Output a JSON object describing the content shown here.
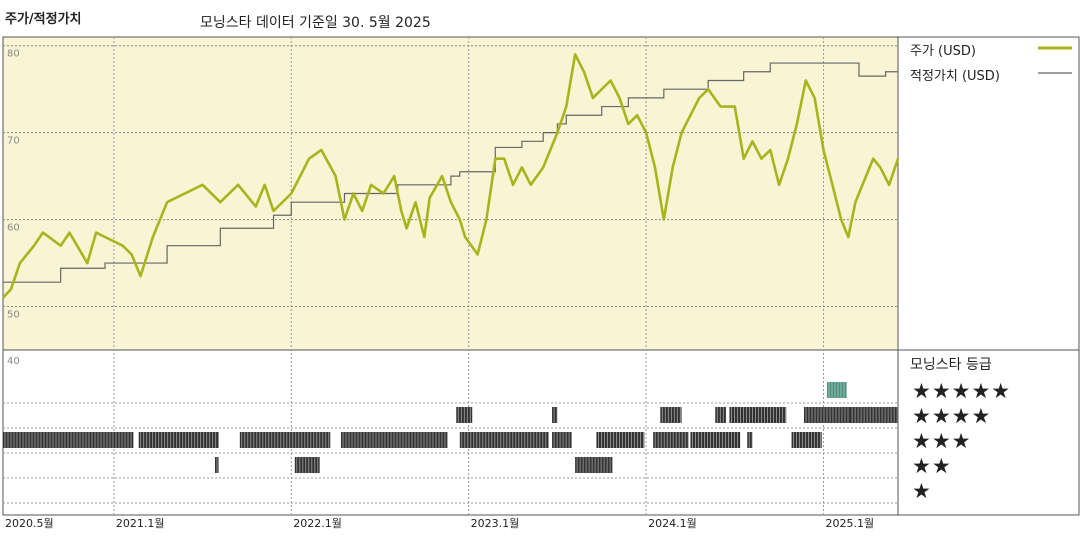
{
  "header": {
    "title": "주가/적정가치",
    "subtitle": "모닝스타 데이터 기준일 30. 5월 2025"
  },
  "legend": {
    "price_label": "주가 (USD)",
    "fair_value_label": "적정가치 (USD)",
    "rating_title": "모닝스타 등급"
  },
  "colors": {
    "price_line": "#a9b41d",
    "fair_value_line": "#666666",
    "upper_panel_bg": "#f8f4d4",
    "rating_bar": "#333333",
    "five_star_bar": "#4c8f7c"
  },
  "chart_data": [
    {
      "type": "line",
      "title": "주가/적정가치",
      "y_ticks": [
        80,
        70,
        60,
        50
      ],
      "ylim": [
        45,
        81
      ],
      "x_ticks": [
        "2020.5월",
        "2021.1월",
        "2022.1월",
        "2023.1월",
        "2024.1월",
        "2025.1월"
      ],
      "x_tick_t": [
        2020.375,
        2021.0,
        2022.0,
        2023.0,
        2024.0,
        2025.0
      ],
      "xlim": [
        2020.375,
        2025.42
      ],
      "grid": true,
      "series": [
        {
          "name": "주가 (USD)",
          "points": [
            [
              2020.375,
              51
            ],
            [
              2020.42,
              52
            ],
            [
              2020.47,
              55
            ],
            [
              2020.55,
              57
            ],
            [
              2020.6,
              58.5
            ],
            [
              2020.7,
              57
            ],
            [
              2020.75,
              58.5
            ],
            [
              2020.85,
              55
            ],
            [
              2020.9,
              58.5
            ],
            [
              2020.95,
              58
            ],
            [
              2021.05,
              57
            ],
            [
              2021.1,
              56
            ],
            [
              2021.15,
              53.5
            ],
            [
              2021.22,
              58
            ],
            [
              2021.3,
              62
            ],
            [
              2021.4,
              63
            ],
            [
              2021.5,
              64
            ],
            [
              2021.6,
              62
            ],
            [
              2021.7,
              64
            ],
            [
              2021.8,
              61.5
            ],
            [
              2021.85,
              64
            ],
            [
              2021.9,
              61
            ],
            [
              2022.0,
              63
            ],
            [
              2022.05,
              65
            ],
            [
              2022.1,
              67
            ],
            [
              2022.17,
              68
            ],
            [
              2022.25,
              65
            ],
            [
              2022.3,
              60
            ],
            [
              2022.35,
              63
            ],
            [
              2022.4,
              61
            ],
            [
              2022.45,
              64
            ],
            [
              2022.52,
              63
            ],
            [
              2022.58,
              65
            ],
            [
              2022.62,
              61
            ],
            [
              2022.65,
              59
            ],
            [
              2022.7,
              62
            ],
            [
              2022.75,
              58
            ],
            [
              2022.78,
              62.5
            ],
            [
              2022.85,
              65
            ],
            [
              2022.9,
              62
            ],
            [
              2022.95,
              60
            ],
            [
              2022.98,
              58
            ],
            [
              2023.05,
              56
            ],
            [
              2023.1,
              60
            ],
            [
              2023.15,
              67
            ],
            [
              2023.2,
              67
            ],
            [
              2023.25,
              64
            ],
            [
              2023.3,
              66
            ],
            [
              2023.35,
              64
            ],
            [
              2023.42,
              66
            ],
            [
              2023.5,
              70
            ],
            [
              2023.55,
              73
            ],
            [
              2023.6,
              79
            ],
            [
              2023.65,
              77
            ],
            [
              2023.7,
              74
            ],
            [
              2023.8,
              76
            ],
            [
              2023.85,
              74
            ],
            [
              2023.9,
              71
            ],
            [
              2023.95,
              72
            ],
            [
              2024.0,
              70
            ],
            [
              2024.05,
              66
            ],
            [
              2024.1,
              60
            ],
            [
              2024.15,
              66
            ],
            [
              2024.2,
              70
            ],
            [
              2024.3,
              74
            ],
            [
              2024.35,
              75
            ],
            [
              2024.42,
              73
            ],
            [
              2024.5,
              73
            ],
            [
              2024.55,
              67
            ],
            [
              2024.6,
              69
            ],
            [
              2024.65,
              67
            ],
            [
              2024.7,
              68
            ],
            [
              2024.75,
              64
            ],
            [
              2024.8,
              67
            ],
            [
              2024.85,
              71
            ],
            [
              2024.9,
              76
            ],
            [
              2024.95,
              74
            ],
            [
              2025.0,
              68
            ],
            [
              2025.05,
              64
            ],
            [
              2025.1,
              60
            ],
            [
              2025.14,
              58
            ],
            [
              2025.18,
              62
            ],
            [
              2025.22,
              64
            ],
            [
              2025.28,
              67
            ],
            [
              2025.32,
              66
            ],
            [
              2025.37,
              64
            ],
            [
              2025.42,
              67
            ]
          ]
        },
        {
          "name": "적정가치 (USD)",
          "steps": [
            [
              2020.375,
              52.8
            ],
            [
              2020.7,
              54.4
            ],
            [
              2020.95,
              55
            ],
            [
              2021.3,
              57
            ],
            [
              2021.6,
              59
            ],
            [
              2021.9,
              60.5
            ],
            [
              2022.0,
              62
            ],
            [
              2022.3,
              63
            ],
            [
              2022.6,
              64
            ],
            [
              2022.9,
              65
            ],
            [
              2022.95,
              65.5
            ],
            [
              2023.15,
              68.3
            ],
            [
              2023.3,
              69
            ],
            [
              2023.42,
              70
            ],
            [
              2023.5,
              71
            ],
            [
              2023.55,
              72
            ],
            [
              2023.75,
              73
            ],
            [
              2023.9,
              74
            ],
            [
              2024.1,
              75
            ],
            [
              2024.35,
              76
            ],
            [
              2024.55,
              77
            ],
            [
              2024.7,
              78
            ],
            [
              2025.2,
              76.5
            ],
            [
              2025.35,
              77
            ]
          ]
        }
      ]
    },
    {
      "type": "table",
      "title": "모닝스타 등급",
      "levels": [
        "★★★★★",
        "★★★★",
        "★★★",
        "★★",
        "★"
      ],
      "segments": [
        {
          "level": 5,
          "spans": [
            [
              2025.02,
              2025.13
            ]
          ]
        },
        {
          "level": 4,
          "spans": [
            [
              2022.93,
              2023.02
            ],
            [
              2023.47,
              2023.5
            ],
            [
              2024.08,
              2024.2
            ],
            [
              2024.39,
              2024.45
            ],
            [
              2024.47,
              2024.79
            ],
            [
              2024.89,
              2245.02
            ],
            [
              2025.15,
              2025.42
            ]
          ]
        },
        {
          "level": 3,
          "spans": [
            [
              2020.375,
              2021.11
            ],
            [
              2021.14,
              2021.59
            ],
            [
              2021.71,
              2022.22
            ],
            [
              2022.28,
              2022.88
            ],
            [
              2022.95,
              2023.45
            ],
            [
              2023.47,
              2023.58
            ],
            [
              2023.72,
              2023.99
            ],
            [
              2024.04,
              2024.24
            ],
            [
              2024.25,
              2024.53
            ],
            [
              2024.57,
              2024.6
            ],
            [
              2024.82,
              2024.99
            ]
          ]
        },
        {
          "level": 2,
          "spans": [
            [
              2021.57,
              2021.59
            ],
            [
              2022.02,
              2022.16
            ],
            [
              2023.6,
              2023.81
            ]
          ]
        },
        {
          "level": 1,
          "spans": []
        }
      ]
    }
  ]
}
